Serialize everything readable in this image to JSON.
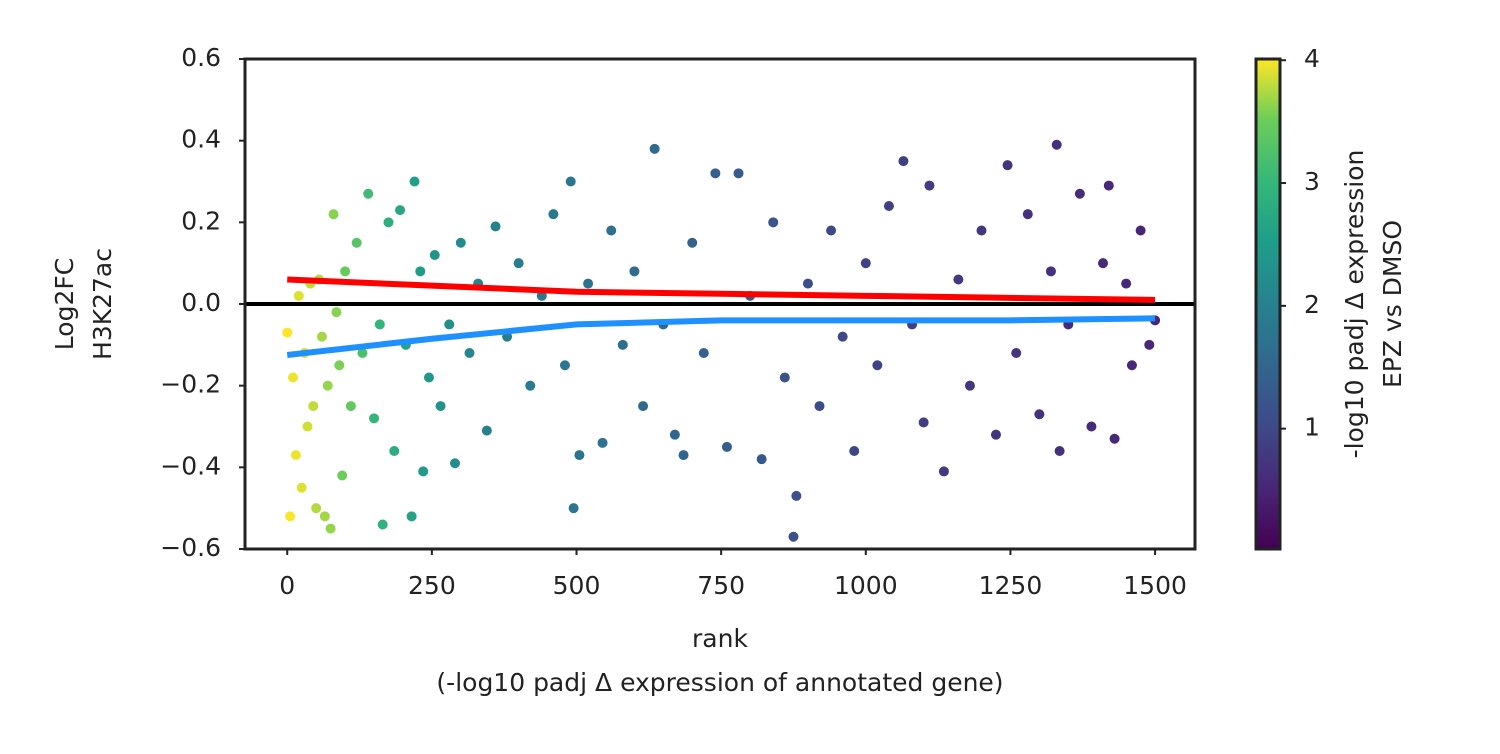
{
  "chart_data": {
    "type": "scatter",
    "x_label": [
      "rank",
      "(-log10 padj Δ expression of annotated gene)"
    ],
    "y_label": [
      "Log2FC",
      "H3K27ac"
    ],
    "colorbar_label": [
      "-log10 padj Δ expression",
      "EPZ vs DMSO"
    ],
    "colormap": "viridis",
    "clim": [
      0.02,
      4.01
    ],
    "cticks": [
      1,
      2,
      3,
      4
    ],
    "xlim": [
      -73,
      1569
    ],
    "xticks": [
      0,
      250,
      500,
      750,
      1000,
      1250,
      1500
    ],
    "ylim": [
      -0.6,
      0.6
    ],
    "yticks": [
      {
        "value": -0.6,
        "label": "−0.6"
      },
      {
        "value": -0.4,
        "label": "−0.4"
      },
      {
        "value": -0.2,
        "label": "−0.2"
      },
      {
        "value": 0,
        "label": "0.0"
      },
      {
        "value": 0.2,
        "label": "0.2"
      },
      {
        "value": 0.4,
        "label": "0.4"
      },
      {
        "value": 0.6,
        "label": "0.6"
      }
    ],
    "hline": 0,
    "x": [
      0,
      5,
      10,
      15,
      20,
      25,
      30,
      35,
      40,
      45,
      50,
      55,
      60,
      65,
      70,
      75,
      80,
      85,
      90,
      95,
      100,
      110,
      120,
      130,
      140,
      150,
      160,
      165,
      175,
      185,
      195,
      205,
      215,
      220,
      230,
      235,
      245,
      255,
      265,
      280,
      290,
      300,
      315,
      330,
      345,
      360,
      380,
      400,
      420,
      440,
      460,
      480,
      490,
      495,
      505,
      520,
      545,
      560,
      580,
      600,
      615,
      635,
      650,
      670,
      685,
      700,
      720,
      740,
      760,
      780,
      800,
      820,
      840,
      860,
      875,
      880,
      900,
      920,
      940,
      960,
      980,
      1000,
      1020,
      1040,
      1065,
      1080,
      1100,
      1110,
      1135,
      1160,
      1180,
      1200,
      1225,
      1245,
      1260,
      1280,
      1300,
      1320,
      1330,
      1335,
      1350,
      1370,
      1390,
      1410,
      1420,
      1430,
      1450,
      1460,
      1475,
      1490,
      1500
    ],
    "values": [
      -0.07,
      -0.52,
      -0.18,
      -0.37,
      0.02,
      -0.45,
      -0.12,
      -0.3,
      0.05,
      -0.25,
      -0.5,
      0.06,
      -0.08,
      -0.52,
      -0.2,
      -0.55,
      0.22,
      -0.02,
      -0.15,
      -0.42,
      0.08,
      -0.25,
      0.15,
      -0.12,
      0.27,
      -0.28,
      -0.05,
      -0.54,
      0.2,
      -0.36,
      0.23,
      -0.1,
      -0.52,
      0.3,
      0.08,
      -0.41,
      -0.18,
      0.12,
      -0.25,
      -0.05,
      -0.39,
      0.15,
      -0.12,
      0.05,
      -0.31,
      0.19,
      -0.08,
      0.1,
      -0.2,
      0.02,
      0.22,
      -0.15,
      0.3,
      -0.5,
      -0.37,
      0.05,
      -0.34,
      0.18,
      -0.1,
      0.08,
      -0.25,
      0.38,
      -0.05,
      -0.32,
      -0.37,
      0.15,
      -0.12,
      0.32,
      -0.35,
      0.32,
      0.02,
      -0.38,
      0.2,
      -0.18,
      -0.57,
      -0.47,
      0.05,
      -0.25,
      0.18,
      -0.08,
      -0.36,
      0.1,
      -0.15,
      0.24,
      0.35,
      -0.05,
      -0.29,
      0.29,
      -0.41,
      0.06,
      -0.2,
      0.18,
      -0.32,
      0.34,
      -0.12,
      0.22,
      -0.27,
      0.08,
      0.39,
      -0.36,
      -0.05,
      0.27,
      -0.3,
      0.1,
      0.29,
      -0.33,
      0.05,
      -0.15,
      0.18,
      -0.1,
      -0.04
    ],
    "color_values": [
      4.0,
      4.0,
      3.95,
      3.95,
      3.9,
      3.9,
      3.85,
      3.85,
      3.8,
      3.8,
      3.75,
      3.75,
      3.7,
      3.7,
      3.65,
      3.65,
      3.6,
      3.6,
      3.55,
      3.5,
      3.45,
      3.4,
      3.3,
      3.2,
      3.1,
      3.0,
      2.95,
      2.9,
      2.85,
      2.8,
      2.7,
      2.65,
      2.6,
      2.55,
      2.5,
      2.45,
      2.4,
      2.35,
      2.3,
      2.25,
      2.2,
      2.15,
      2.1,
      2.05,
      2.0,
      1.98,
      1.95,
      1.9,
      1.88,
      1.85,
      1.82,
      1.8,
      1.78,
      1.77,
      1.75,
      1.72,
      1.7,
      1.67,
      1.64,
      1.6,
      1.58,
      1.55,
      1.52,
      1.5,
      1.47,
      1.44,
      1.41,
      1.38,
      1.35,
      1.32,
      1.28,
      1.25,
      1.22,
      1.18,
      1.15,
      1.14,
      1.1,
      1.07,
      1.04,
      1.0,
      0.97,
      0.94,
      0.92,
      0.9,
      0.87,
      0.85,
      0.83,
      0.82,
      0.8,
      0.78,
      0.76,
      0.74,
      0.72,
      0.7,
      0.68,
      0.66,
      0.65,
      0.63,
      0.62,
      0.62,
      0.6,
      0.58,
      0.57,
      0.56,
      0.55,
      0.54,
      0.53,
      0.52,
      0.51,
      0.5,
      0.5
    ],
    "lines": [
      {
        "color": "#ff0000",
        "x": [
          0,
          250,
          500,
          750,
          1000,
          1250,
          1500
        ],
        "values": [
          0.06,
          0.045,
          0.03,
          0.025,
          0.02,
          0.015,
          0.01
        ]
      },
      {
        "color": "#1e90ff",
        "x": [
          0,
          250,
          500,
          750,
          1000,
          1250,
          1500
        ],
        "values": [
          -0.125,
          -0.085,
          -0.05,
          -0.04,
          -0.04,
          -0.04,
          -0.035
        ]
      }
    ]
  }
}
